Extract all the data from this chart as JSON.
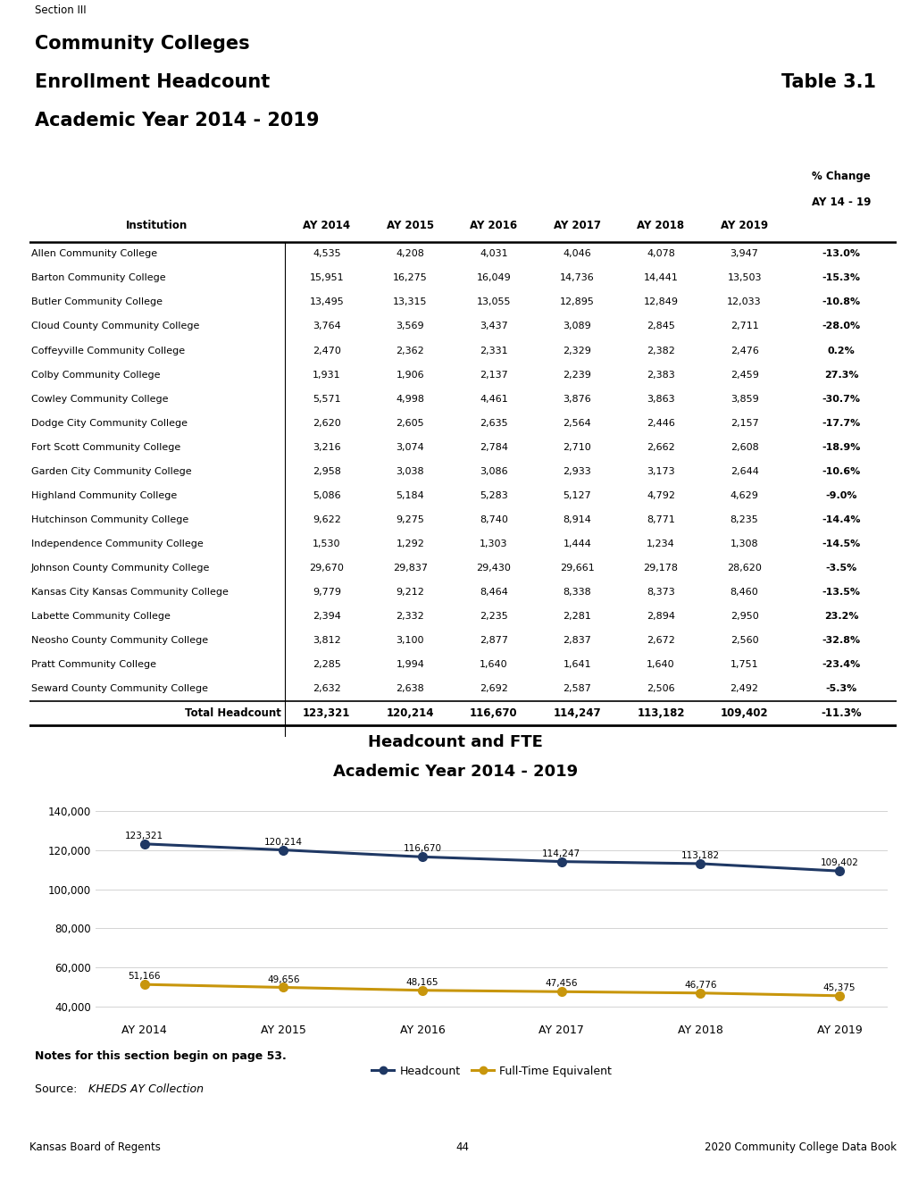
{
  "section_label": "Section III",
  "title_line1": "Community Colleges",
  "title_line2": "Enrollment Headcount",
  "title_line3": "Academic Year 2014 - 2019",
  "table_label": "Table 3.1",
  "institutions": [
    "Allen Community College",
    "Barton Community College",
    "Butler Community College",
    "Cloud County Community College",
    "Coffeyville Community College",
    "Colby Community College",
    "Cowley Community College",
    "Dodge City Community College",
    "Fort Scott Community College",
    "Garden City Community College",
    "Highland Community College",
    "Hutchinson Community College",
    "Independence Community College",
    "Johnson County Community College",
    "Kansas City Kansas Community College",
    "Labette Community College",
    "Neosho County Community College",
    "Pratt Community College",
    "Seward County Community College"
  ],
  "data": [
    [
      4535,
      4208,
      4031,
      4046,
      4078,
      3947,
      "-13.0%"
    ],
    [
      15951,
      16275,
      16049,
      14736,
      14441,
      13503,
      "-15.3%"
    ],
    [
      13495,
      13315,
      13055,
      12895,
      12849,
      12033,
      "-10.8%"
    ],
    [
      3764,
      3569,
      3437,
      3089,
      2845,
      2711,
      "-28.0%"
    ],
    [
      2470,
      2362,
      2331,
      2329,
      2382,
      2476,
      "0.2%"
    ],
    [
      1931,
      1906,
      2137,
      2239,
      2383,
      2459,
      "27.3%"
    ],
    [
      5571,
      4998,
      4461,
      3876,
      3863,
      3859,
      "-30.7%"
    ],
    [
      2620,
      2605,
      2635,
      2564,
      2446,
      2157,
      "-17.7%"
    ],
    [
      3216,
      3074,
      2784,
      2710,
      2662,
      2608,
      "-18.9%"
    ],
    [
      2958,
      3038,
      3086,
      2933,
      3173,
      2644,
      "-10.6%"
    ],
    [
      5086,
      5184,
      5283,
      5127,
      4792,
      4629,
      "-9.0%"
    ],
    [
      9622,
      9275,
      8740,
      8914,
      8771,
      8235,
      "-14.4%"
    ],
    [
      1530,
      1292,
      1303,
      1444,
      1234,
      1308,
      "-14.5%"
    ],
    [
      29670,
      29837,
      29430,
      29661,
      29178,
      28620,
      "-3.5%"
    ],
    [
      9779,
      9212,
      8464,
      8338,
      8373,
      8460,
      "-13.5%"
    ],
    [
      2394,
      2332,
      2235,
      2281,
      2894,
      2950,
      "23.2%"
    ],
    [
      3812,
      3100,
      2877,
      2837,
      2672,
      2560,
      "-32.8%"
    ],
    [
      2285,
      1994,
      1640,
      1641,
      1640,
      1751,
      "-23.4%"
    ],
    [
      2632,
      2638,
      2692,
      2587,
      2506,
      2492,
      "-5.3%"
    ]
  ],
  "total_row": [
    "Total Headcount",
    123321,
    120214,
    116670,
    114247,
    113182,
    109402,
    "-11.3%"
  ],
  "chart_title_line1": "Headcount and FTE",
  "chart_title_line2": "Academic Year 2014 - 2019",
  "years": [
    "AY 2014",
    "AY 2015",
    "AY 2016",
    "AY 2017",
    "AY 2018",
    "AY 2019"
  ],
  "headcount": [
    123321,
    120214,
    116670,
    114247,
    113182,
    109402
  ],
  "fte": [
    51166,
    49656,
    48165,
    47456,
    46776,
    45375
  ],
  "headcount_color": "#1F3864",
  "fte_color": "#C8960C",
  "notes_bold": "Notes for this section begin on page 53.",
  "notes_source_prefix": "Source: ",
  "notes_source_italic": "KHEDS AY Collection",
  "footer_left": "Kansas Board of Regents",
  "footer_center": "44",
  "footer_right": "2020 Community College Data Book",
  "background_color": "#ffffff"
}
